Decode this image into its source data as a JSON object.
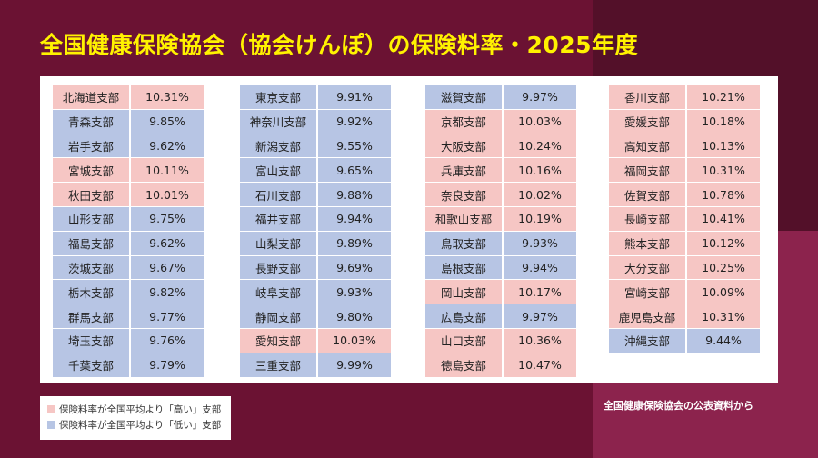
{
  "title": "全国健康保険協会（協会けんぽ）の保険料率・2025年度",
  "colors": {
    "high": "#f6c6c4",
    "low": "#b7c5e4",
    "title": "#fff200"
  },
  "columns": [
    [
      {
        "name": "北海道支部",
        "rate": "10.31%",
        "level": "high"
      },
      {
        "name": "青森支部",
        "rate": "9.85%",
        "level": "low"
      },
      {
        "name": "岩手支部",
        "rate": "9.62%",
        "level": "low"
      },
      {
        "name": "宮城支部",
        "rate": "10.11%",
        "level": "high"
      },
      {
        "name": "秋田支部",
        "rate": "10.01%",
        "level": "high"
      },
      {
        "name": "山形支部",
        "rate": "9.75%",
        "level": "low"
      },
      {
        "name": "福島支部",
        "rate": "9.62%",
        "level": "low"
      },
      {
        "name": "茨城支部",
        "rate": "9.67%",
        "level": "low"
      },
      {
        "name": "栃木支部",
        "rate": "9.82%",
        "level": "low"
      },
      {
        "name": "群馬支部",
        "rate": "9.77%",
        "level": "low"
      },
      {
        "name": "埼玉支部",
        "rate": "9.76%",
        "level": "low"
      },
      {
        "name": "千葉支部",
        "rate": "9.79%",
        "level": "low"
      }
    ],
    [
      {
        "name": "東京支部",
        "rate": "9.91%",
        "level": "low"
      },
      {
        "name": "神奈川支部",
        "rate": "9.92%",
        "level": "low"
      },
      {
        "name": "新潟支部",
        "rate": "9.55%",
        "level": "low"
      },
      {
        "name": "富山支部",
        "rate": "9.65%",
        "level": "low"
      },
      {
        "name": "石川支部",
        "rate": "9.88%",
        "level": "low"
      },
      {
        "name": "福井支部",
        "rate": "9.94%",
        "level": "low"
      },
      {
        "name": "山梨支部",
        "rate": "9.89%",
        "level": "low"
      },
      {
        "name": "長野支部",
        "rate": "9.69%",
        "level": "low"
      },
      {
        "name": "岐阜支部",
        "rate": "9.93%",
        "level": "low"
      },
      {
        "name": "静岡支部",
        "rate": "9.80%",
        "level": "low"
      },
      {
        "name": "愛知支部",
        "rate": "10.03%",
        "level": "high"
      },
      {
        "name": "三重支部",
        "rate": "9.99%",
        "level": "low"
      }
    ],
    [
      {
        "name": "滋賀支部",
        "rate": "9.97%",
        "level": "low"
      },
      {
        "name": "京都支部",
        "rate": "10.03%",
        "level": "high"
      },
      {
        "name": "大阪支部",
        "rate": "10.24%",
        "level": "high"
      },
      {
        "name": "兵庫支部",
        "rate": "10.16%",
        "level": "high"
      },
      {
        "name": "奈良支部",
        "rate": "10.02%",
        "level": "high"
      },
      {
        "name": "和歌山支部",
        "rate": "10.19%",
        "level": "high"
      },
      {
        "name": "鳥取支部",
        "rate": "9.93%",
        "level": "low"
      },
      {
        "name": "島根支部",
        "rate": "9.94%",
        "level": "low"
      },
      {
        "name": "岡山支部",
        "rate": "10.17%",
        "level": "high"
      },
      {
        "name": "広島支部",
        "rate": "9.97%",
        "level": "low"
      },
      {
        "name": "山口支部",
        "rate": "10.36%",
        "level": "high"
      },
      {
        "name": "徳島支部",
        "rate": "10.47%",
        "level": "high"
      }
    ],
    [
      {
        "name": "香川支部",
        "rate": "10.21%",
        "level": "high"
      },
      {
        "name": "愛媛支部",
        "rate": "10.18%",
        "level": "high"
      },
      {
        "name": "高知支部",
        "rate": "10.13%",
        "level": "high"
      },
      {
        "name": "福岡支部",
        "rate": "10.31%",
        "level": "high"
      },
      {
        "name": "佐賀支部",
        "rate": "10.78%",
        "level": "high"
      },
      {
        "name": "長崎支部",
        "rate": "10.41%",
        "level": "high"
      },
      {
        "name": "熊本支部",
        "rate": "10.12%",
        "level": "high"
      },
      {
        "name": "大分支部",
        "rate": "10.25%",
        "level": "high"
      },
      {
        "name": "宮崎支部",
        "rate": "10.09%",
        "level": "high"
      },
      {
        "name": "鹿児島支部",
        "rate": "10.31%",
        "level": "high"
      },
      {
        "name": "沖縄支部",
        "rate": "9.44%",
        "level": "low"
      }
    ]
  ],
  "legend": {
    "high": "保険料率が全国平均より「高い」支部",
    "low": "保険料率が全国平均より「低い」支部"
  },
  "source": "全国健康保険協会の公表資料から"
}
